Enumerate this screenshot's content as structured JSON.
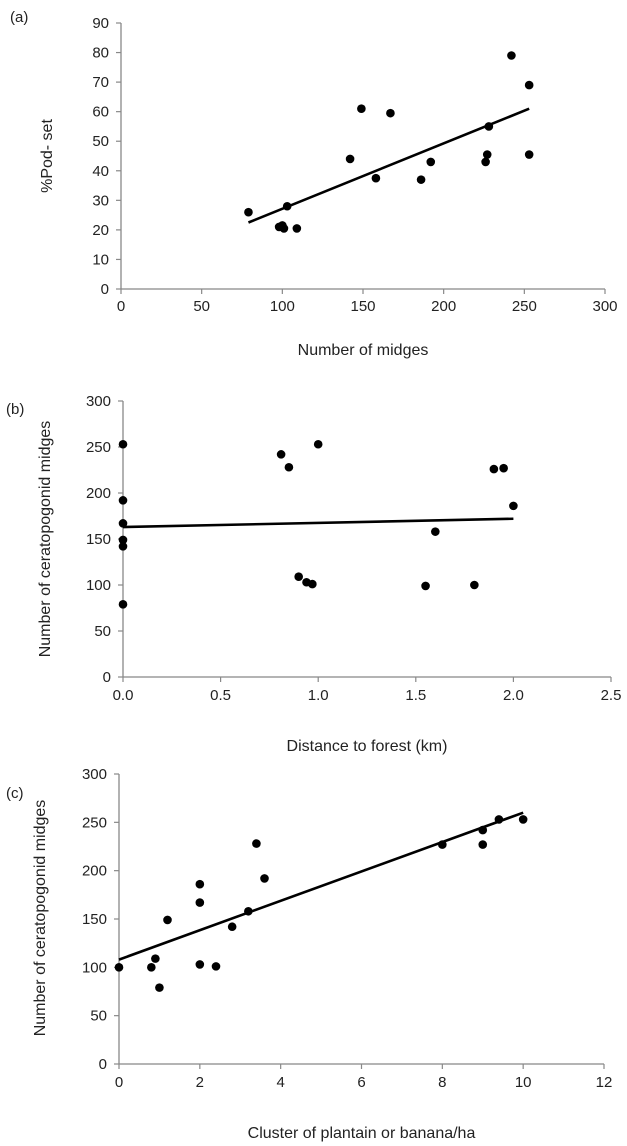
{
  "chart_data": [
    {
      "panel_label": "(a)",
      "type": "scatter",
      "xlabel": "Number of midges",
      "ylabel": "%Pod- set",
      "xlim": [
        0,
        300
      ],
      "ylim": [
        0,
        90
      ],
      "xticks": [
        0,
        50,
        100,
        150,
        200,
        250,
        300
      ],
      "yticks": [
        0,
        10,
        20,
        30,
        40,
        50,
        60,
        70,
        80,
        90
      ],
      "xtick_decimals": 0,
      "points": [
        [
          79,
          26
        ],
        [
          98,
          21
        ],
        [
          100,
          21.5
        ],
        [
          101,
          20.5
        ],
        [
          103,
          28
        ],
        [
          109,
          20.5
        ],
        [
          142,
          44
        ],
        [
          149,
          61
        ],
        [
          158,
          37.5
        ],
        [
          167,
          59.5
        ],
        [
          186,
          37
        ],
        [
          192,
          43
        ],
        [
          226,
          43
        ],
        [
          227,
          45.5
        ],
        [
          228,
          55
        ],
        [
          242,
          79
        ],
        [
          253,
          69
        ],
        [
          253,
          45.5
        ]
      ],
      "trendline": {
        "x": [
          79,
          253
        ],
        "y": [
          22.5,
          61
        ]
      },
      "grid": false
    },
    {
      "panel_label": "(b)",
      "type": "scatter",
      "xlabel": "Distance to forest  (km)",
      "ylabel": "Number of ceratopogonid  midges",
      "xlim": [
        0,
        2.5
      ],
      "ylim": [
        0,
        300
      ],
      "xticks": [
        0,
        0.5,
        1,
        1.5,
        2,
        2.5
      ],
      "yticks": [
        0,
        50,
        100,
        150,
        200,
        250,
        300
      ],
      "xtick_decimals": 1,
      "points": [
        [
          0,
          253
        ],
        [
          0,
          192
        ],
        [
          0,
          167
        ],
        [
          0,
          149
        ],
        [
          0,
          142
        ],
        [
          0,
          79
        ],
        [
          0.81,
          242
        ],
        [
          0.85,
          228
        ],
        [
          0.9,
          109
        ],
        [
          0.94,
          103
        ],
        [
          0.97,
          101
        ],
        [
          1.0,
          253
        ],
        [
          1.55,
          99
        ],
        [
          1.6,
          158
        ],
        [
          1.8,
          100
        ],
        [
          1.9,
          226
        ],
        [
          1.95,
          227
        ],
        [
          2.0,
          186
        ]
      ],
      "trendline": {
        "x": [
          0,
          2.0
        ],
        "y": [
          163,
          172
        ]
      },
      "grid": false
    },
    {
      "panel_label": "(c)",
      "type": "scatter",
      "xlabel": "Cluster of plantain or banana/ha",
      "ylabel": "Number of ceratopogonid midges",
      "xlim": [
        0,
        12
      ],
      "ylim": [
        0,
        300
      ],
      "xticks": [
        0,
        2,
        4,
        6,
        8,
        10,
        12
      ],
      "yticks": [
        0,
        50,
        100,
        150,
        200,
        250,
        300
      ],
      "xtick_decimals": 0,
      "points": [
        [
          0,
          100
        ],
        [
          0.8,
          100
        ],
        [
          0.9,
          109
        ],
        [
          1.0,
          79
        ],
        [
          1.2,
          149
        ],
        [
          2.0,
          186
        ],
        [
          2.0,
          167
        ],
        [
          2.0,
          103
        ],
        [
          2.4,
          101
        ],
        [
          2.8,
          142
        ],
        [
          3.2,
          158
        ],
        [
          3.4,
          228
        ],
        [
          3.6,
          192
        ],
        [
          8.0,
          227
        ],
        [
          9.0,
          242
        ],
        [
          9.0,
          227
        ],
        [
          9.4,
          253
        ],
        [
          10.0,
          253
        ]
      ],
      "trendline": {
        "x": [
          0,
          10
        ],
        "y": [
          108,
          260
        ]
      },
      "grid": false
    }
  ],
  "style": {
    "point_color": "#000000",
    "line_color": "#000000",
    "axis_color": "#888888"
  }
}
